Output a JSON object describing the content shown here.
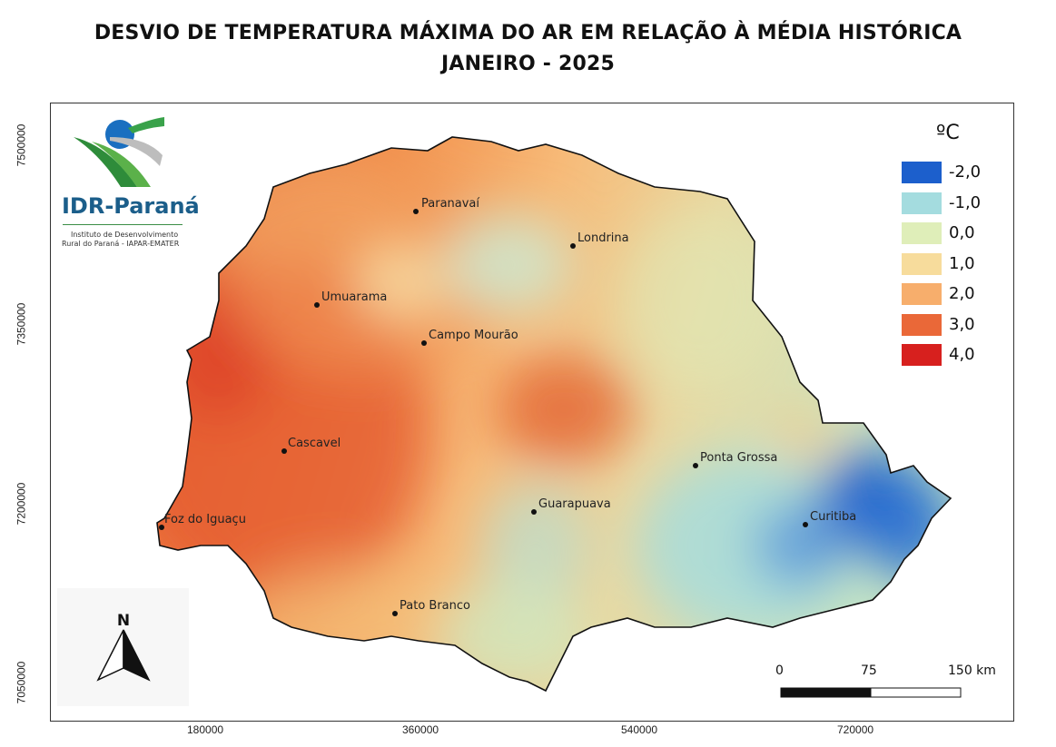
{
  "title": {
    "line1": "DESVIO DE TEMPERATURA MÁXIMA DO AR EM RELAÇÃO À MÉDIA HISTÓRICA",
    "line2": "JANEIRO - 2025"
  },
  "logo": {
    "name": "IDR-Paraná",
    "subtitle_line1": "Instituto de Desenvolvimento",
    "subtitle_line2": "Rural do Paraná - IAPAR-EMATER"
  },
  "legend": {
    "unit": "ºC",
    "items": [
      {
        "label": "-2,0",
        "color": "#1c5fcc"
      },
      {
        "label": "-1,0",
        "color": "#a4dcdf"
      },
      {
        "label": "0,0",
        "color": "#dfeeb9"
      },
      {
        "label": "1,0",
        "color": "#f7dc9c"
      },
      {
        "label": "2,0",
        "color": "#f7ae6c"
      },
      {
        "label": "3,0",
        "color": "#ea6838"
      },
      {
        "label": "4,0",
        "color": "#d7201e"
      }
    ]
  },
  "cities": [
    {
      "name": "Paranavaí"
    },
    {
      "name": "Londrina"
    },
    {
      "name": "Umuarama"
    },
    {
      "name": "Campo Mourão"
    },
    {
      "name": "Cascavel"
    },
    {
      "name": "Ponta Grossa"
    },
    {
      "name": "Guarapuava"
    },
    {
      "name": "Curitiba"
    },
    {
      "name": "Foz do Iguaçu"
    },
    {
      "name": "Pato Branco"
    }
  ],
  "axes": {
    "x_ticks": [
      "180000",
      "360000",
      "540000",
      "720000"
    ],
    "y_ticks": [
      "7500000",
      "7350000",
      "7200000",
      "7050000"
    ]
  },
  "north_arrow": {
    "label": "N"
  },
  "scale_bar": {
    "labels": [
      "0",
      "75",
      "150 km"
    ]
  }
}
